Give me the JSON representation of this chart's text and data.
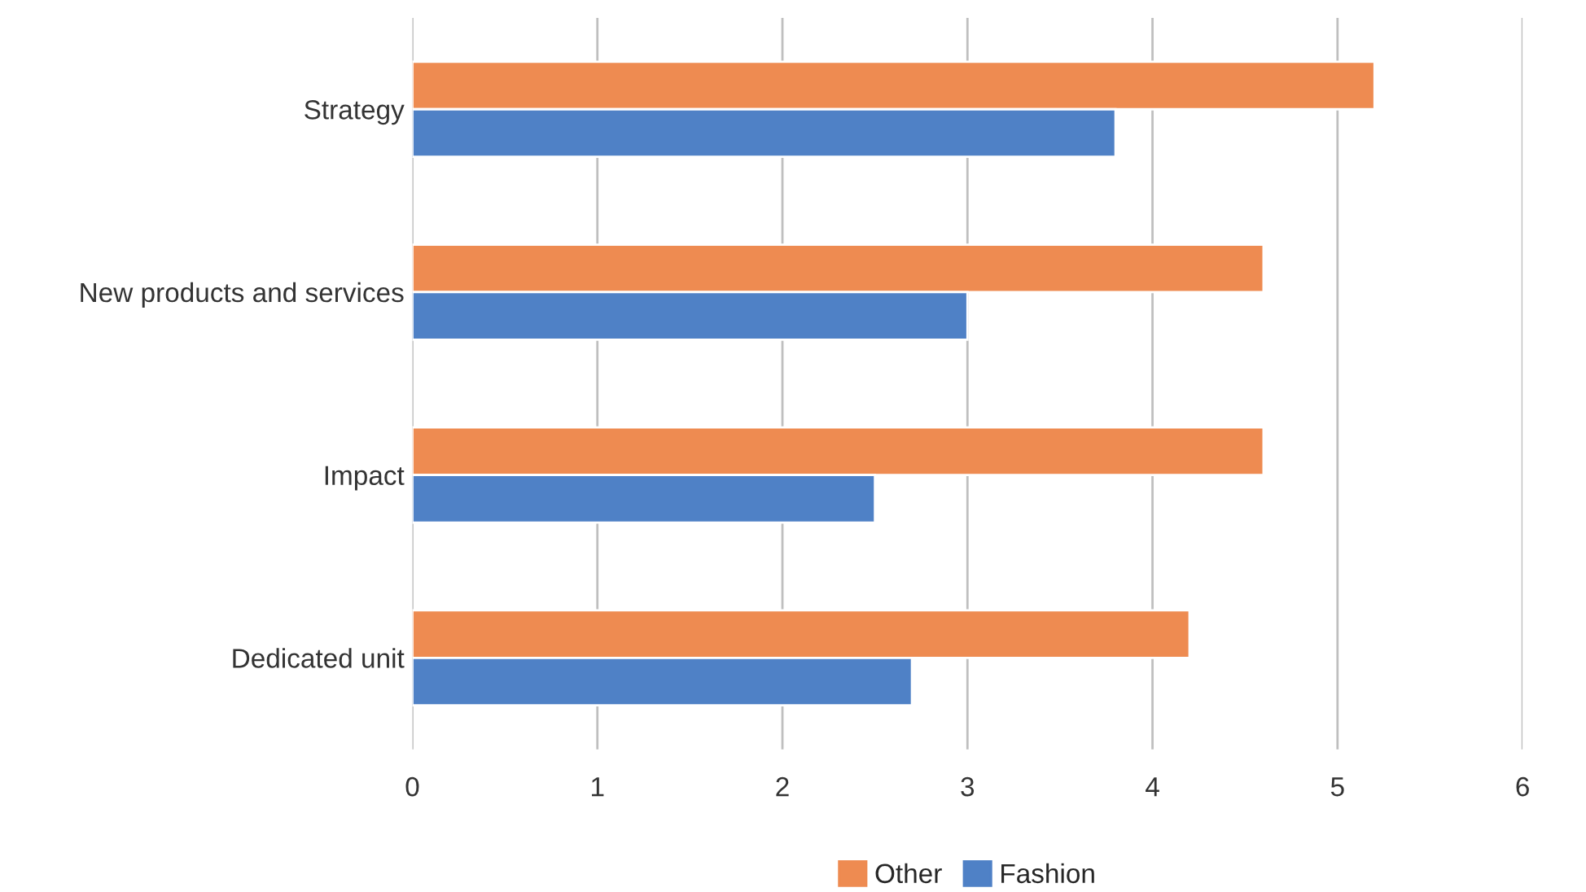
{
  "chart_data": {
    "type": "bar",
    "orientation": "horizontal",
    "categories": [
      "Strategy",
      "New products and services",
      "Impact",
      "Dedicated unit"
    ],
    "series": [
      {
        "name": "Other",
        "color": "#ee8b51",
        "values": [
          5.2,
          4.6,
          4.6,
          4.2
        ]
      },
      {
        "name": "Fashion",
        "color": "#4f81c6",
        "values": [
          3.8,
          3.0,
          2.5,
          2.7
        ]
      }
    ],
    "xlim": [
      0,
      6
    ],
    "xticks": [
      0,
      1,
      2,
      3,
      4,
      5,
      6
    ],
    "grid": "x",
    "legend": "bottom"
  }
}
